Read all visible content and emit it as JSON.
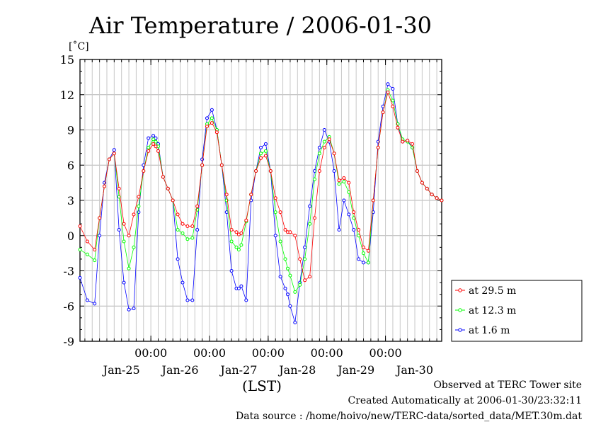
{
  "chart_data": {
    "type": "line",
    "title": "Air Temperature / 2006-01-30",
    "ylabel": "[˚C]",
    "xlabel": "(LST)",
    "ylim": [
      -9,
      15
    ],
    "y_ticks": [
      "15",
      "12",
      "9",
      "6",
      "3",
      "0",
      "-3",
      "-6",
      "-9"
    ],
    "y_tick_values": [
      15,
      12,
      9,
      6,
      3,
      0,
      -3,
      -6,
      -9
    ],
    "x_unit": "hours since Jan-24 19:00 LST",
    "xlim": [
      0,
      148
    ],
    "x_ticks": [
      {
        "hour": 29,
        "time": "00:00",
        "date": "Jan-25"
      },
      {
        "hour": 53,
        "time": "00:00",
        "date": "Jan-26"
      },
      {
        "hour": 77,
        "time": "00:00",
        "date": "Jan-27"
      },
      {
        "hour": 101,
        "time": "00:00",
        "date": "Jan-28"
      },
      {
        "hour": 125,
        "time": "00:00",
        "date": "Jan-29"
      },
      {
        "hour": 149,
        "time": "",
        "date": "Jan-30"
      }
    ],
    "grid": true,
    "legend_position": "right",
    "x": [
      0,
      3,
      6,
      8,
      10,
      12,
      14,
      16,
      18,
      20,
      22,
      24,
      26,
      28,
      30,
      31,
      32,
      34,
      36,
      38,
      40,
      42,
      44,
      46,
      48,
      50,
      52,
      54,
      56,
      58,
      60,
      62,
      64,
      65,
      66,
      68,
      70,
      72,
      74,
      76,
      78,
      80,
      82,
      84,
      85,
      86,
      88,
      90,
      92,
      94,
      96,
      98,
      100,
      102,
      104,
      106,
      108,
      110,
      112,
      114,
      116,
      118,
      120,
      122,
      124,
      126,
      128,
      130,
      132,
      134,
      136,
      138,
      140,
      142,
      144,
      146,
      148
    ],
    "series": [
      {
        "name": "at 29.5 m",
        "color": "#ff0000",
        "values": [
          0.8,
          -0.5,
          -1.2,
          1.5,
          4.2,
          6.5,
          7.0,
          4.0,
          1.0,
          0.0,
          1.8,
          3.3,
          5.5,
          7.2,
          7.8,
          7.6,
          7.2,
          5.0,
          4.0,
          3.0,
          1.8,
          1.0,
          0.8,
          0.8,
          2.5,
          6.0,
          9.3,
          9.6,
          8.8,
          6.0,
          3.5,
          0.5,
          0.3,
          0.1,
          0.2,
          1.3,
          3.5,
          5.5,
          6.6,
          6.8,
          5.5,
          3.2,
          2.0,
          0.5,
          0.3,
          0.3,
          0.0,
          -2.0,
          -3.8,
          -3.5,
          1.5,
          5.5,
          7.5,
          8.2,
          7.0,
          4.7,
          4.9,
          4.5,
          2.0,
          0.5,
          -1.0,
          -1.3,
          3.0,
          7.5,
          10.5,
          12.2,
          11.0,
          9.2,
          8.0,
          8.1,
          7.8,
          5.5,
          4.5,
          4.0,
          3.5,
          3.2,
          3.0
        ]
      },
      {
        "name": "at 12.3 m",
        "color": "#00ff00",
        "values": [
          -1.2,
          -1.6,
          -2.1,
          1.5,
          4.2,
          6.5,
          7.0,
          3.3,
          -0.5,
          -2.8,
          -1.0,
          2.5,
          5.5,
          7.5,
          8.2,
          8.0,
          7.6,
          5.0,
          4.0,
          3.0,
          0.5,
          0.2,
          -0.3,
          -0.2,
          2.2,
          6.0,
          9.5,
          10.0,
          9.0,
          6.0,
          3.0,
          -0.5,
          -1.0,
          -1.2,
          -0.8,
          1.2,
          3.5,
          5.5,
          7.0,
          7.2,
          5.5,
          2.0,
          -0.5,
          -2.0,
          -2.8,
          -3.4,
          -4.8,
          -4.2,
          -2.0,
          1.0,
          4.8,
          7.0,
          8.0,
          8.4,
          7.0,
          4.4,
          4.6,
          3.7,
          1.5,
          0.0,
          -1.5,
          -2.3,
          3.0,
          7.5,
          10.5,
          12.4,
          11.5,
          9.5,
          8.2,
          8.0,
          7.5,
          5.5,
          4.5,
          4.0,
          3.5,
          3.2,
          3.0
        ]
      },
      {
        "name": "at 1.6 m",
        "color": "#0000ff",
        "values": [
          -3.6,
          -5.5,
          -5.8,
          0.0,
          4.5,
          6.5,
          7.3,
          0.5,
          -4.0,
          -6.3,
          -6.2,
          2.0,
          6.0,
          8.3,
          8.5,
          8.3,
          7.8,
          5.0,
          4.0,
          3.0,
          -2.0,
          -4.0,
          -5.5,
          -5.5,
          0.5,
          6.5,
          10.0,
          10.7,
          9.0,
          6.0,
          2.0,
          -3.0,
          -4.5,
          -4.5,
          -4.3,
          -5.5,
          3.0,
          5.5,
          7.5,
          7.8,
          5.5,
          0.0,
          -3.5,
          -4.5,
          -5.0,
          -6.0,
          -7.4,
          -4.0,
          -1.0,
          2.5,
          5.5,
          7.5,
          9.0,
          8.0,
          5.5,
          0.5,
          3.0,
          1.8,
          0.5,
          -2.0,
          -2.3,
          -2.3,
          2.0,
          8.0,
          11.0,
          12.9,
          12.5,
          9.5,
          8.0,
          8.1,
          7.5,
          5.5,
          4.5,
          4.0,
          3.5,
          3.2,
          3.0
        ]
      }
    ]
  },
  "footer": {
    "line1": "Observed at TERC Tower site",
    "line2": "Created Automatically at 2006-01-30/23:32:11",
    "line3": "Data source : /home/hoivo/new/TERC-data/sorted_data/MET.30m.dat"
  }
}
